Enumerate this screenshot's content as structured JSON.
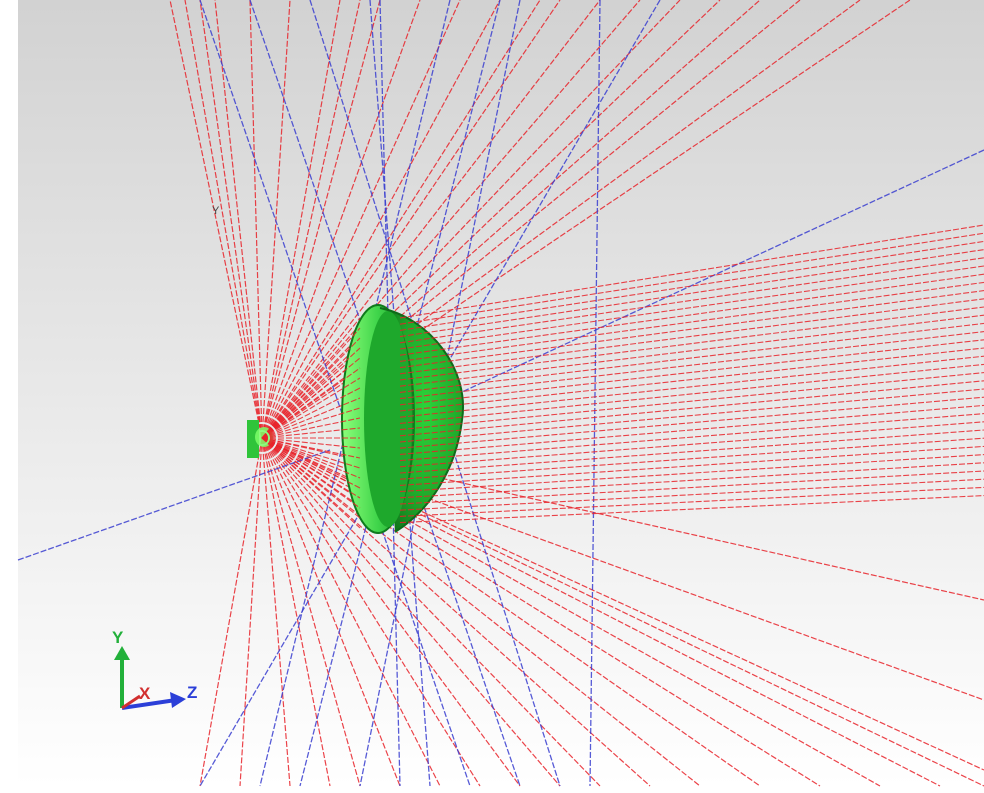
{
  "scene": {
    "ray_colors": {
      "primary": "#e8232a",
      "secondary": "#3a3fd0"
    },
    "lens_color": "#1fa82a",
    "lens_highlight": "#7dff6a",
    "background_top": "#d2d2d2",
    "background_bottom": "#ffffff"
  },
  "labels": {
    "y_small": "Y"
  },
  "triad": {
    "y_label": "Y",
    "x_label": "X",
    "z_label": "Z",
    "y_color": "#22b03a",
    "x_color": "#d23030",
    "z_color": "#2b3fd8"
  }
}
